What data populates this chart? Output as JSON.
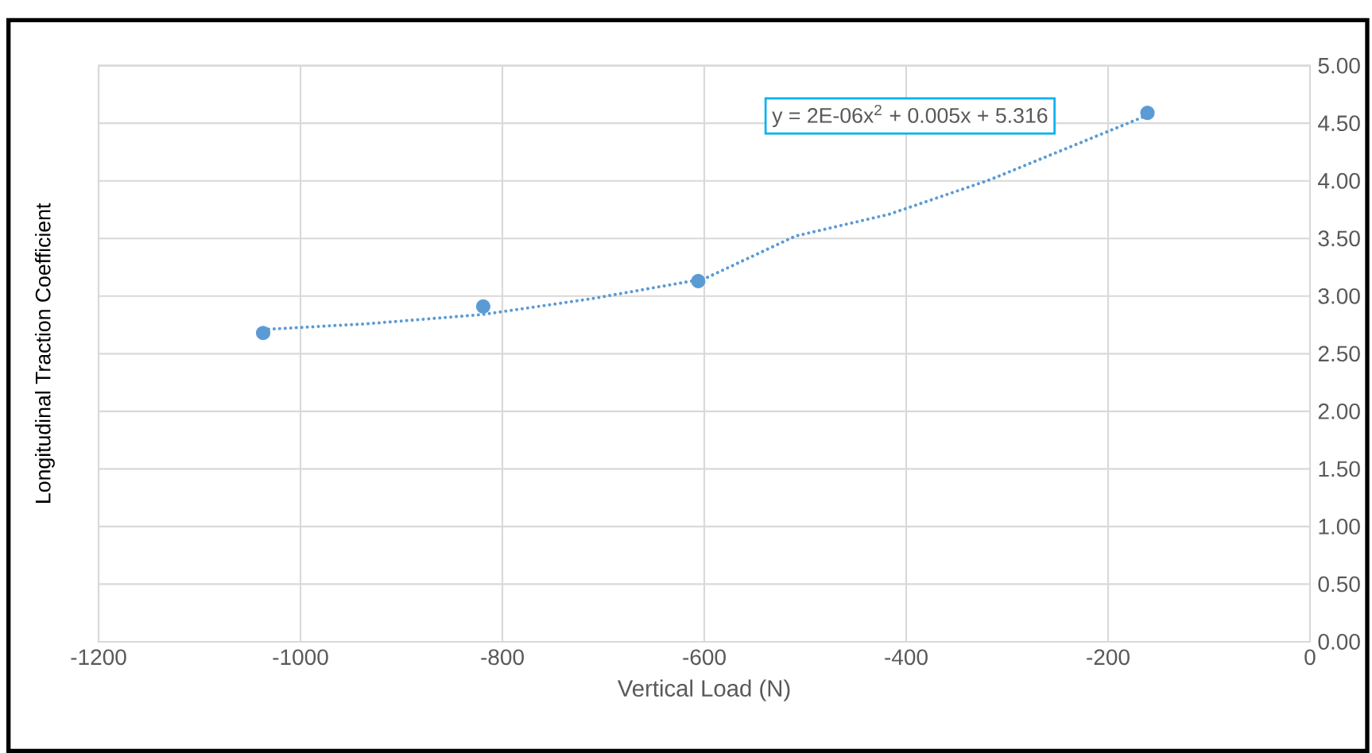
{
  "chart_data": {
    "type": "scatter",
    "xlabel": "Vertical Load (N)",
    "ylabel": "Longitudinal Traction Coefficient",
    "annotations": [
      "y = 2E-06x$^{2}$ + 0.005x + 5.316"
    ],
    "series": [
      {
        "color": "#5b9bd5",
        "marker": "circle",
        "x": [
          -1037,
          -819,
          -606,
          -161
        ],
        "values": [
          2.68,
          2.91,
          3.13,
          4.59
        ]
      },
      {
        "type": "line",
        "color": "#5b9bd5",
        "line_style": "dotted",
        "x": [
          -1037,
          -934,
          -820,
          -710,
          -600,
          -510,
          -417,
          -317,
          -161
        ],
        "values": [
          2.71,
          2.76,
          2.84,
          2.98,
          3.15,
          3.52,
          3.71,
          4.01,
          4.57
        ]
      }
    ],
    "xlim": [
      -1200,
      0
    ],
    "xticks": [
      -1200,
      -1000,
      -800,
      -600,
      -400,
      -200,
      0
    ],
    "ylim": [
      0,
      5
    ],
    "yticks": [
      {
        "value": 0,
        "label": "0.00"
      },
      {
        "value": 0.5,
        "label": "0.50"
      },
      {
        "value": 1,
        "label": "1.00"
      },
      {
        "value": 1.5,
        "label": "1.50"
      },
      {
        "value": 2,
        "label": "2.00"
      },
      {
        "value": 2.5,
        "label": "2.50"
      },
      {
        "value": 3,
        "label": "3.00"
      },
      {
        "value": 3.5,
        "label": "3.50"
      },
      {
        "value": 4,
        "label": "4.00"
      },
      {
        "value": 4.5,
        "label": "4.50"
      },
      {
        "value": 5,
        "label": "5.00"
      }
    ],
    "grid": true
  }
}
